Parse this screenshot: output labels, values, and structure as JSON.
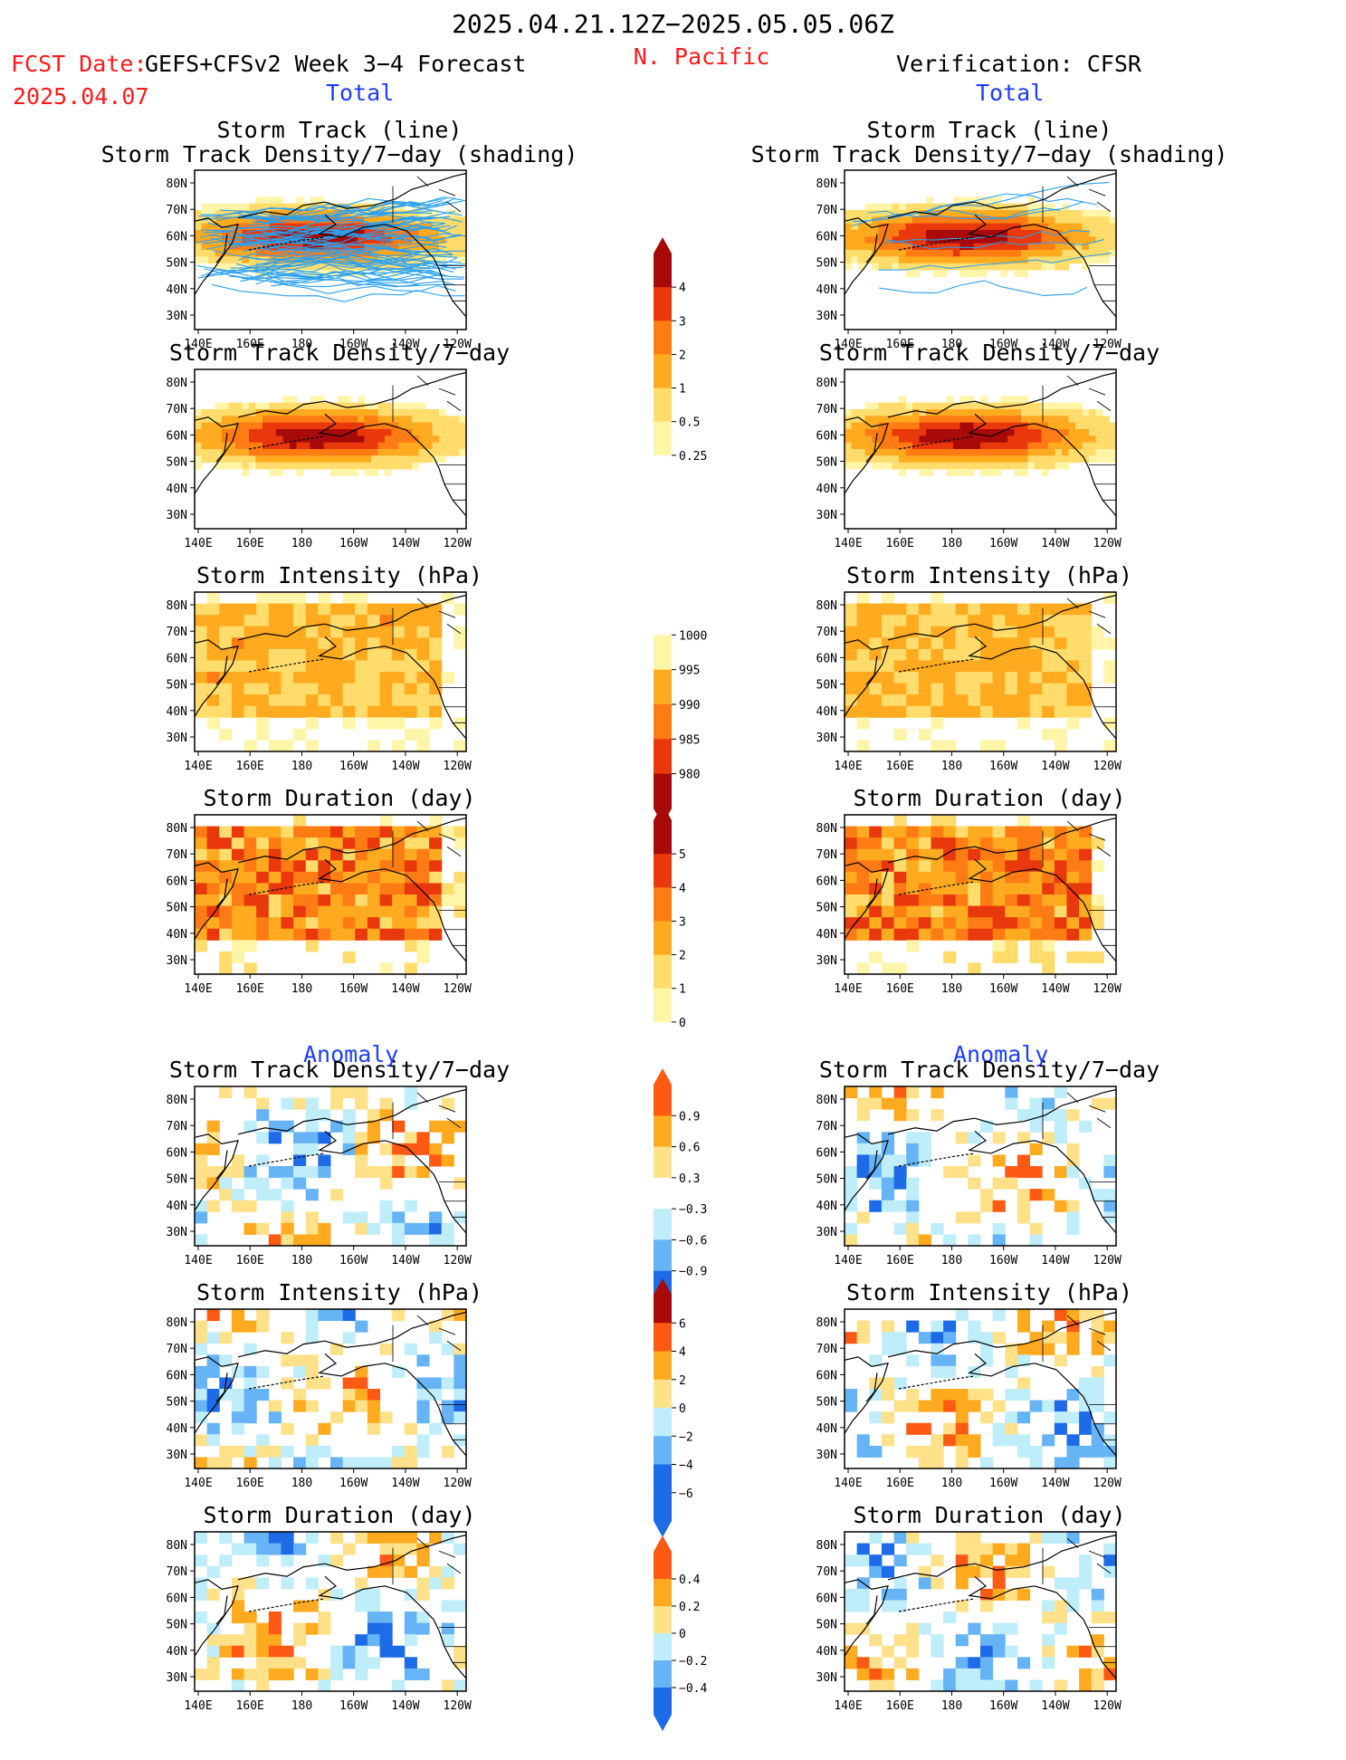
{
  "header": {
    "title": "2025.04.21.12Z−2025.05.05.06Z",
    "fcst_label": "FCST Date:",
    "fcst_date": "2025.04.07",
    "model": "GEFS+CFSv2 Week 3−4 Forecast",
    "region": "N. Pacific",
    "verification": "Verification: CFSR",
    "left_section": "Total",
    "right_section": "Total",
    "left_anomaly": "Anomaly",
    "right_anomaly": "Anomaly"
  },
  "colors": {
    "title_red": "#ff1a1a",
    "section_blue": "#1f3dff",
    "track_line": "#2aa0f0",
    "pos": [
      "#fff5a8",
      "#ffdc6b",
      "#ffaa1f",
      "#ff7b14",
      "#e8380c",
      "#a80a0a"
    ],
    "anom_pos": [
      "#ffe18a",
      "#ffaa1f",
      "#ff5a14"
    ],
    "anom_neg": [
      "#bfeefa",
      "#66b4f5",
      "#1e6be8"
    ]
  },
  "axes": {
    "lon_labels": [
      "140E",
      "160E",
      "180",
      "160W",
      "140W",
      "120W"
    ],
    "lat_labels": [
      "80N",
      "70N",
      "60N",
      "50N",
      "40N",
      "30N"
    ]
  },
  "panels": {
    "left": [
      {
        "title1": "Storm Track (line)",
        "title2": "Storm Track Density/7−day (shading)"
      },
      {
        "title1": "Storm Track Density/7−day",
        "title2": ""
      },
      {
        "title1": "Storm Intensity (hPa)",
        "title2": ""
      },
      {
        "title1": "Storm Duration (day)",
        "title2": ""
      },
      {
        "title1": "Storm Track Density/7−day",
        "title2": ""
      },
      {
        "title1": "Storm Intensity (hPa)",
        "title2": ""
      },
      {
        "title1": "Storm Duration (day)",
        "title2": ""
      }
    ],
    "right": [
      {
        "title1": "Storm Track (line)",
        "title2": "Storm Track Density/7−day (shading)"
      },
      {
        "title1": "Storm Track Density/7−day",
        "title2": ""
      },
      {
        "title1": "Storm Intensity (hPa)",
        "title2": ""
      },
      {
        "title1": "Storm Duration (day)",
        "title2": ""
      },
      {
        "title1": "Storm Track Density/7−day",
        "title2": ""
      },
      {
        "title1": "Storm Intensity (hPa)",
        "title2": ""
      },
      {
        "title1": "Storm Duration (day)",
        "title2": ""
      }
    ]
  },
  "colorbars": {
    "density": [
      "4",
      "3",
      "2",
      "1",
      "0.5",
      "0.25"
    ],
    "intensity": [
      "1000",
      "995",
      "990",
      "985",
      "980"
    ],
    "duration": [
      "5",
      "4",
      "3",
      "2",
      "1",
      "0"
    ],
    "anom_density": [
      "0.9",
      "0.6",
      "0.3",
      "−0.3",
      "−0.6",
      "−0.9"
    ],
    "anom_intensity": [
      "6",
      "4",
      "2",
      "0",
      "−2",
      "−4",
      "−6"
    ],
    "anom_duration": [
      "0.4",
      "0.2",
      "0",
      "−0.2",
      "−0.4"
    ]
  }
}
